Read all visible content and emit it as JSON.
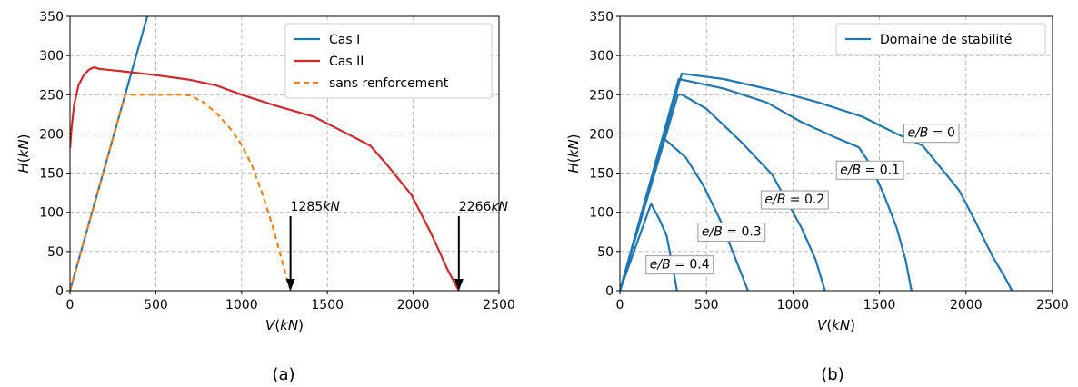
{
  "figure": {
    "captions": [
      "(a)",
      "(b)"
    ]
  },
  "chart_data": [
    {
      "type": "line",
      "panel": "(a)",
      "xlabel": "V(kN)",
      "ylabel": "H(kN)",
      "xlim": [
        0,
        2500
      ],
      "ylim": [
        0,
        350
      ],
      "xticks": [
        0,
        500,
        1000,
        1500,
        2000,
        2500
      ],
      "yticks": [
        0,
        50,
        100,
        150,
        200,
        250,
        300,
        350
      ],
      "grid": true,
      "legend_position": "top-right",
      "series": [
        {
          "name": "Cas I",
          "color": "#1f77b4",
          "dash": "solid",
          "points": [
            [
              0,
              0
            ],
            [
              450,
              350
            ]
          ]
        },
        {
          "name": "Cas II",
          "color": "#d62728",
          "dash": "solid",
          "points": [
            [
              0,
              182
            ],
            [
              10,
              210
            ],
            [
              25,
              238
            ],
            [
              50,
              262
            ],
            [
              80,
              275
            ],
            [
              110,
              282
            ],
            [
              140,
              285
            ],
            [
              170,
              283
            ],
            [
              300,
              280
            ],
            [
              500,
              275
            ],
            [
              700,
              269
            ],
            [
              850,
              262
            ],
            [
              1000,
              250
            ],
            [
              1200,
              236
            ],
            [
              1420,
              222
            ],
            [
              1600,
              202
            ],
            [
              1750,
              185
            ],
            [
              1850,
              160
            ],
            [
              1990,
              122
            ],
            [
              2100,
              75
            ],
            [
              2200,
              27
            ],
            [
              2266,
              0
            ]
          ]
        },
        {
          "name": "sans renforcement",
          "color": "#ff7f0e",
          "dash": "dashed",
          "points": [
            [
              0,
              0
            ],
            [
              321,
              250
            ],
            [
              400,
              250
            ],
            [
              650,
              250
            ],
            [
              700,
              249
            ],
            [
              780,
              240
            ],
            [
              860,
              225
            ],
            [
              930,
              208
            ],
            [
              1000,
              186
            ],
            [
              1060,
              160
            ],
            [
              1120,
              124
            ],
            [
              1180,
              83
            ],
            [
              1230,
              43
            ],
            [
              1265,
              15
            ],
            [
              1285,
              0
            ]
          ]
        }
      ],
      "annotations": [
        {
          "text": "1285",
          "unit": "kN",
          "x": 1285,
          "y": 95,
          "arrow_to": [
            1285,
            0
          ]
        },
        {
          "text": "2266",
          "unit": "kN",
          "x": 2266,
          "y": 95,
          "arrow_to": [
            2266,
            0
          ]
        }
      ]
    },
    {
      "type": "line",
      "panel": "(b)",
      "xlabel": "V(kN)",
      "ylabel": "H(kN)",
      "xlim": [
        0,
        2500
      ],
      "ylim": [
        0,
        350
      ],
      "xticks": [
        0,
        500,
        1000,
        1500,
        2000,
        2500
      ],
      "yticks": [
        0,
        50,
        100,
        150,
        200,
        250,
        300,
        350
      ],
      "grid": true,
      "legend_position": "top-right",
      "series": [
        {
          "name": "Domaine de stabilité",
          "color": "#1f77b4",
          "curves": [
            {
              "label": "e/B = 0",
              "points": [
                [
                  0,
                  0
                ],
                [
                  357,
                  277
                ],
                [
                  600,
                  270
                ],
                [
                  900,
                  255
                ],
                [
                  1150,
                  240
                ],
                [
                  1400,
                  222
                ],
                [
                  1600,
                  200
                ],
                [
                  1750,
                  185
                ],
                [
                  1850,
                  158
                ],
                [
                  1960,
                  128
                ],
                [
                  2050,
                  90
                ],
                [
                  2150,
                  45
                ],
                [
                  2230,
                  15
                ],
                [
                  2266,
                  0
                ]
              ]
            },
            {
              "label": "e/B = 0.1",
              "points": [
                [
                  0,
                  0
                ],
                [
                  340,
                  270
                ],
                [
                  600,
                  258
                ],
                [
                  850,
                  240
                ],
                [
                  1050,
                  215
                ],
                [
                  1250,
                  195
                ],
                [
                  1380,
                  183
                ],
                [
                  1450,
                  160
                ],
                [
                  1530,
                  120
                ],
                [
                  1600,
                  80
                ],
                [
                  1650,
                  40
                ],
                [
                  1685,
                  0
                ]
              ]
            },
            {
              "label": "e/B = 0.2",
              "points": [
                [
                  0,
                  0
                ],
                [
                  335,
                  250
                ],
                [
                  360,
                  250
                ],
                [
                  500,
                  232
                ],
                [
                  700,
                  190
                ],
                [
                  880,
                  148
                ],
                [
                  950,
                  120
                ],
                [
                  1050,
                  80
                ],
                [
                  1130,
                  40
                ],
                [
                  1185,
                  0
                ]
              ]
            },
            {
              "label": "e/B = 0.3",
              "points": [
                [
                  0,
                  0
                ],
                [
                  255,
                  194
                ],
                [
                  380,
                  170
                ],
                [
                  480,
                  135
                ],
                [
                  580,
                  90
                ],
                [
                  660,
                  45
                ],
                [
                  740,
                  0
                ]
              ]
            },
            {
              "label": "e/B = 0.4",
              "points": [
                [
                  0,
                  0
                ],
                [
                  180,
                  111
                ],
                [
                  230,
                  90
                ],
                [
                  270,
                  70
                ],
                [
                  305,
                  30
                ],
                [
                  330,
                  0
                ]
              ]
            }
          ]
        }
      ],
      "labels": [
        {
          "prefix": "e/B",
          "value": "= 0",
          "x": 1800,
          "y": 202
        },
        {
          "prefix": "e/B",
          "value": "= 0.1",
          "x": 1445,
          "y": 155
        },
        {
          "prefix": "e/B",
          "value": "= 0.2",
          "x": 1010,
          "y": 117
        },
        {
          "prefix": "e/B",
          "value": "= 0.3",
          "x": 645,
          "y": 76
        },
        {
          "prefix": "e/B",
          "value": "= 0.4",
          "x": 345,
          "y": 34
        }
      ]
    }
  ]
}
